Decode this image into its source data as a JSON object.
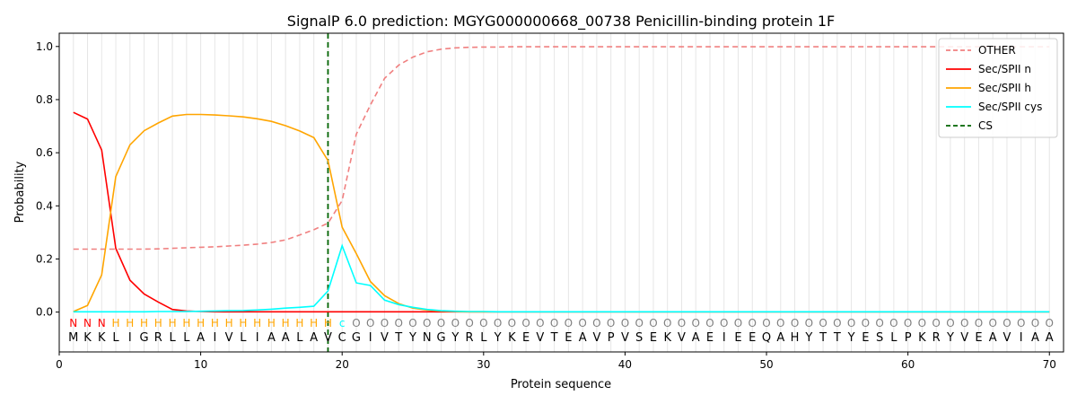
{
  "chart_data": {
    "type": "line",
    "title": "SignalP 6.0 prediction: MGYG000000668_00738 Penicillin-binding protein 1F",
    "xlabel": "Protein sequence",
    "ylabel": "Probability",
    "xlim": [
      0,
      71
    ],
    "ylim": [
      -0.15,
      1.05
    ],
    "xticks": [
      0,
      10,
      20,
      30,
      40,
      50,
      60,
      70
    ],
    "yticks": [
      0.0,
      0.2,
      0.4,
      0.6,
      0.8,
      1.0
    ],
    "grid": "vertical lines at each residue",
    "legend_position": "top-right",
    "x": [
      1,
      2,
      3,
      4,
      5,
      6,
      7,
      8,
      9,
      10,
      11,
      12,
      13,
      14,
      15,
      16,
      17,
      18,
      19,
      20,
      21,
      22,
      23,
      24,
      25,
      26,
      27,
      28,
      29,
      30,
      31,
      32,
      33,
      34,
      35,
      36,
      37,
      38,
      39,
      40,
      41,
      42,
      43,
      44,
      45,
      46,
      47,
      48,
      49,
      50,
      51,
      52,
      53,
      54,
      55,
      56,
      57,
      58,
      59,
      60,
      61,
      62,
      63,
      64,
      65,
      66,
      67,
      68,
      69,
      70
    ],
    "sequence": [
      "M",
      "K",
      "K",
      "L",
      "I",
      "G",
      "R",
      "L",
      "L",
      "A",
      "I",
      "V",
      "L",
      "I",
      "A",
      "A",
      "L",
      "A",
      "V",
      "C",
      "G",
      "I",
      "V",
      "T",
      "Y",
      "N",
      "G",
      "Y",
      "R",
      "L",
      "Y",
      "K",
      "E",
      "V",
      "T",
      "E",
      "A",
      "V",
      "P",
      "V",
      "S",
      "E",
      "K",
      "V",
      "A",
      "E",
      "I",
      "E",
      "E",
      "Q",
      "A",
      "H",
      "Y",
      "T",
      "T",
      "Y",
      "E",
      "S",
      "L",
      "P",
      "K",
      "R",
      "Y",
      "V",
      "E",
      "A",
      "V",
      "I",
      "A",
      "A"
    ],
    "region_labels": [
      "N",
      "N",
      "N",
      "H",
      "H",
      "H",
      "H",
      "H",
      "H",
      "H",
      "H",
      "H",
      "H",
      "H",
      "H",
      "H",
      "H",
      "H",
      "H",
      "c",
      "O",
      "O",
      "O",
      "O",
      "O",
      "O",
      "O",
      "O",
      "O",
      "O",
      "O",
      "O",
      "O",
      "O",
      "O",
      "O",
      "O",
      "O",
      "O",
      "O",
      "O",
      "O",
      "O",
      "O",
      "O",
      "O",
      "O",
      "O",
      "O",
      "O",
      "O",
      "O",
      "O",
      "O",
      "O",
      "O",
      "O",
      "O",
      "O",
      "O",
      "O",
      "O",
      "O",
      "O",
      "O",
      "O",
      "O",
      "O",
      "O",
      "O"
    ],
    "label_colors": {
      "N": "#ff0000",
      "H": "#ffa500",
      "c": "#00ffff",
      "O": "#808080"
    },
    "cs_position": 19,
    "series": [
      {
        "name": "OTHER",
        "color": "#f08080",
        "style": "dashed",
        "values": [
          0.237,
          0.237,
          0.237,
          0.237,
          0.237,
          0.237,
          0.238,
          0.24,
          0.242,
          0.244,
          0.246,
          0.249,
          0.252,
          0.256,
          0.262,
          0.272,
          0.29,
          0.31,
          0.335,
          0.42,
          0.67,
          0.78,
          0.88,
          0.93,
          0.96,
          0.98,
          0.99,
          0.995,
          0.997,
          0.998,
          0.998,
          0.999,
          0.999,
          0.999,
          0.999,
          0.999,
          0.999,
          0.999,
          0.999,
          0.999,
          0.999,
          0.999,
          0.999,
          0.999,
          0.999,
          0.999,
          0.999,
          0.999,
          0.999,
          0.999,
          0.999,
          0.999,
          0.999,
          0.999,
          0.999,
          0.999,
          0.999,
          0.999,
          0.999,
          0.999,
          0.999,
          0.999,
          0.999,
          0.999,
          0.999,
          0.999,
          0.999,
          0.999,
          0.999,
          0.999
        ]
      },
      {
        "name": "Sec/SPII n",
        "color": "#ff0000",
        "style": "solid",
        "values": [
          0.752,
          0.727,
          0.61,
          0.24,
          0.12,
          0.068,
          0.038,
          0.01,
          0.004,
          0.002,
          0.001,
          0.001,
          0.001,
          0.001,
          0.001,
          0.001,
          0.001,
          0.001,
          0.001,
          0.001,
          0.001,
          0.001,
          0.001,
          0.001,
          0.001,
          0.001,
          0.001,
          0.001,
          0.001,
          0.001,
          0.001,
          0.001,
          0.001,
          0.001,
          0.001,
          0.001,
          0.001,
          0.001,
          0.001,
          0.001,
          0.001,
          0.001,
          0.001,
          0.001,
          0.001,
          0.001,
          0.001,
          0.001,
          0.001,
          0.001,
          0.001,
          0.001,
          0.001,
          0.001,
          0.001,
          0.001,
          0.001,
          0.001,
          0.001,
          0.001,
          0.001,
          0.001,
          0.001,
          0.001,
          0.001,
          0.001,
          0.001,
          0.001,
          0.001,
          0.001
        ]
      },
      {
        "name": "Sec/SPII h",
        "color": "#ffa500",
        "style": "solid",
        "values": [
          0.002,
          0.025,
          0.14,
          0.51,
          0.63,
          0.683,
          0.712,
          0.738,
          0.744,
          0.744,
          0.742,
          0.739,
          0.735,
          0.728,
          0.718,
          0.702,
          0.682,
          0.657,
          0.57,
          0.32,
          0.22,
          0.115,
          0.062,
          0.032,
          0.015,
          0.008,
          0.004,
          0.002,
          0.001,
          0.001,
          0.001,
          0.001,
          0.001,
          0.001,
          0.001,
          0.001,
          0.001,
          0.001,
          0.001,
          0.001,
          0.001,
          0.001,
          0.001,
          0.001,
          0.001,
          0.001,
          0.001,
          0.001,
          0.001,
          0.001,
          0.001,
          0.001,
          0.001,
          0.001,
          0.001,
          0.001,
          0.001,
          0.001,
          0.001,
          0.001,
          0.001,
          0.001,
          0.001,
          0.001,
          0.001,
          0.001,
          0.001,
          0.001,
          0.001,
          0.001
        ]
      },
      {
        "name": "Sec/SPII cys",
        "color": "#00ffff",
        "style": "solid",
        "values": [
          0.001,
          0.001,
          0.001,
          0.001,
          0.001,
          0.001,
          0.002,
          0.002,
          0.002,
          0.003,
          0.004,
          0.005,
          0.006,
          0.008,
          0.011,
          0.015,
          0.018,
          0.022,
          0.08,
          0.25,
          0.11,
          0.1,
          0.045,
          0.028,
          0.018,
          0.01,
          0.005,
          0.003,
          0.002,
          0.002,
          0.001,
          0.001,
          0.001,
          0.001,
          0.001,
          0.001,
          0.001,
          0.001,
          0.001,
          0.001,
          0.001,
          0.001,
          0.001,
          0.001,
          0.001,
          0.001,
          0.001,
          0.001,
          0.001,
          0.001,
          0.001,
          0.001,
          0.001,
          0.001,
          0.001,
          0.001,
          0.001,
          0.001,
          0.001,
          0.001,
          0.001,
          0.001,
          0.001,
          0.001,
          0.001,
          0.001,
          0.001,
          0.001,
          0.001,
          0.001
        ]
      }
    ],
    "cs_legend": {
      "name": "CS",
      "color": "#006400",
      "style": "dashed"
    }
  }
}
